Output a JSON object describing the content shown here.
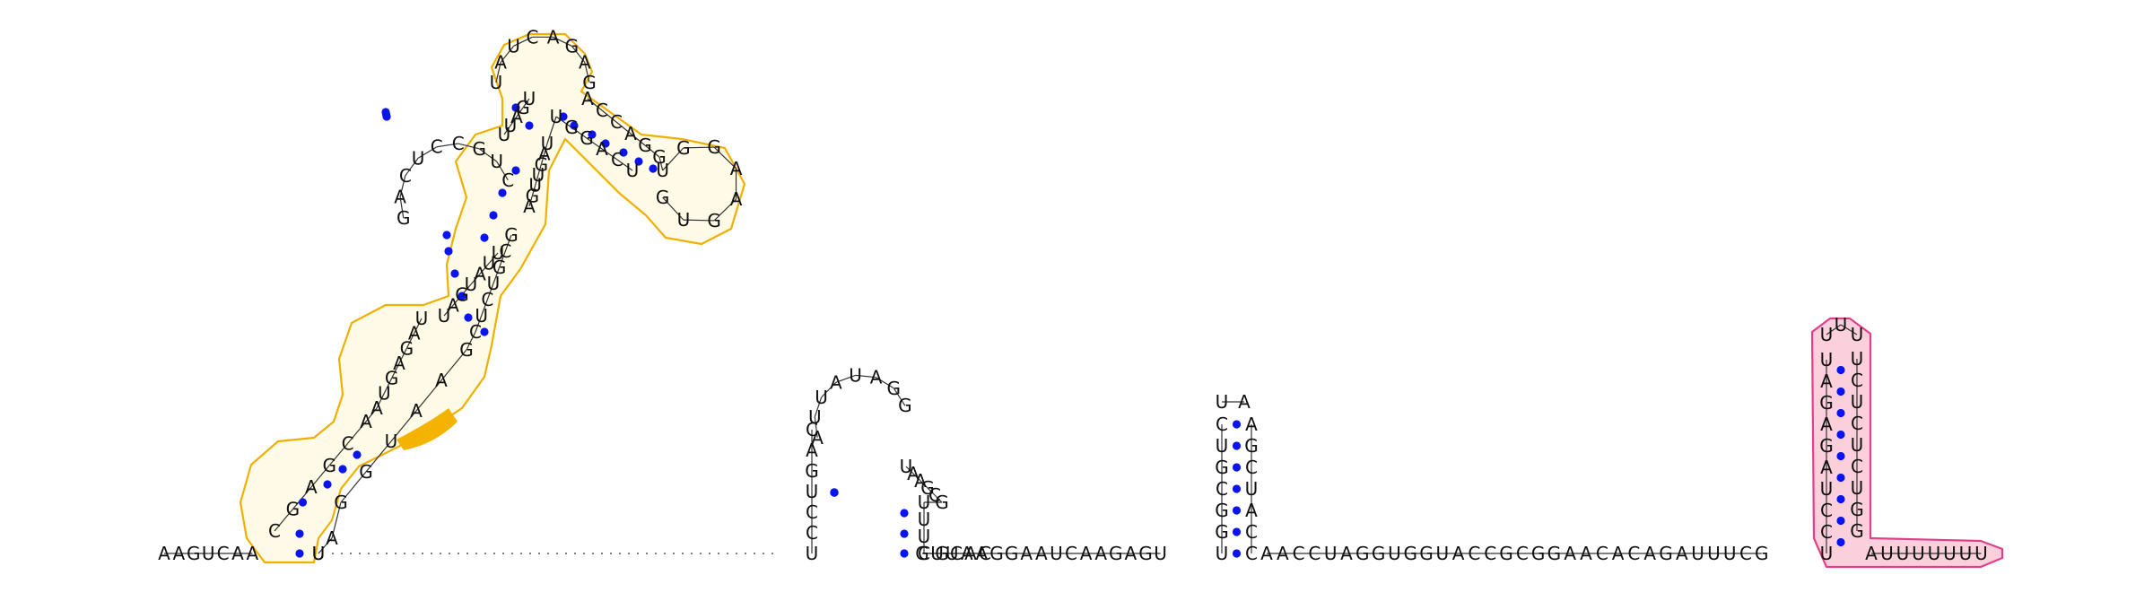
{
  "diagram_title": "RNA secondary structure",
  "colors": {
    "background": "#ffffff",
    "nucleotide_text": "#111111",
    "base_pair_dot": "#0a14ee",
    "domain_left_outline": "#f0b000",
    "domain_left_fill": "#fffbe6",
    "domain_left_highlight": "#f4b300",
    "domain_right_outline": "#e0408a",
    "domain_right_fill": "#fbd0dc"
  },
  "structure": {
    "five_prime_tail": "AAGUCAA",
    "left_domain": {
      "segments": [
        "CGAGCAAUGAGAU",
        "UAGUAUU",
        "GACUCCGUC",
        "UUAGU",
        "UAUCAGAG",
        "ACCAGGUGGAAGUG",
        "UCAGGUUAGUUGA",
        "GCGUCUCGAAUGGAUU"
      ],
      "highlighted_run": "CUC"
    },
    "middle_hairpins": [
      {
        "stem_5": "UCCUGAC",
        "loop": "AUUAUAGG",
        "stem_3": "UAAGCGUUUCGCAC"
      },
      {
        "stem_5": "UGGCGUC",
        "loop": "UA",
        "stem_3": "AGCUACC"
      }
    ],
    "linker_1": "GUUAAGGAAUCAAGAGU",
    "linker_2": "AACCUAGGUGGUACCGCGGAACACAGAUUUCG",
    "right_hairpin": {
      "stem_5": "UCCUAGAGAU",
      "loop": "UUU",
      "stem_3": "UCUCUCUGG"
    },
    "three_prime_tail": "AUUUUUUU"
  }
}
